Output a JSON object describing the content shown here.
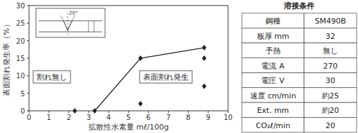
{
  "chart_data": {
    "type": "scatter",
    "xlabel": "拡散性水素量 mℓ/100g",
    "ylabel": "表面割れ発生率（%）",
    "xlim": [
      0,
      10
    ],
    "xticks": [
      0,
      1,
      2,
      3,
      4,
      5,
      6,
      7,
      8,
      9,
      10
    ],
    "ylim": [
      0,
      30
    ],
    "yticks": [
      0,
      5,
      10,
      15,
      20,
      25,
      30
    ],
    "grid": false,
    "annotations": [
      "割れ無し",
      "表面割れ発生",
      "20°"
    ],
    "series": [
      {
        "type": "scatter",
        "marker": "diamond",
        "color": "#222222",
        "x": [
          2.3,
          3.3,
          5.6,
          5.6,
          8.8,
          8.8,
          8.8
        ],
        "values": [
          0,
          0,
          15,
          2,
          18,
          15,
          7
        ]
      },
      {
        "type": "line",
        "line_style": "solid",
        "color": "#222222",
        "x": [
          3.3,
          5.6,
          8.8
        ],
        "values": [
          0,
          15,
          18
        ]
      }
    ]
  },
  "table": {
    "title": "溶接条件",
    "rows": [
      [
        "鋼種",
        "SM490B"
      ],
      [
        "板厚 mm",
        "32"
      ],
      [
        "予熱",
        "無し"
      ],
      [
        "電流 A",
        "270"
      ],
      [
        "電圧 V",
        "30"
      ],
      [
        "速度 cm/min",
        "約25"
      ],
      [
        "Ext. mm",
        "約20"
      ],
      [
        "CO₂ℓ/min",
        "20"
      ]
    ]
  }
}
